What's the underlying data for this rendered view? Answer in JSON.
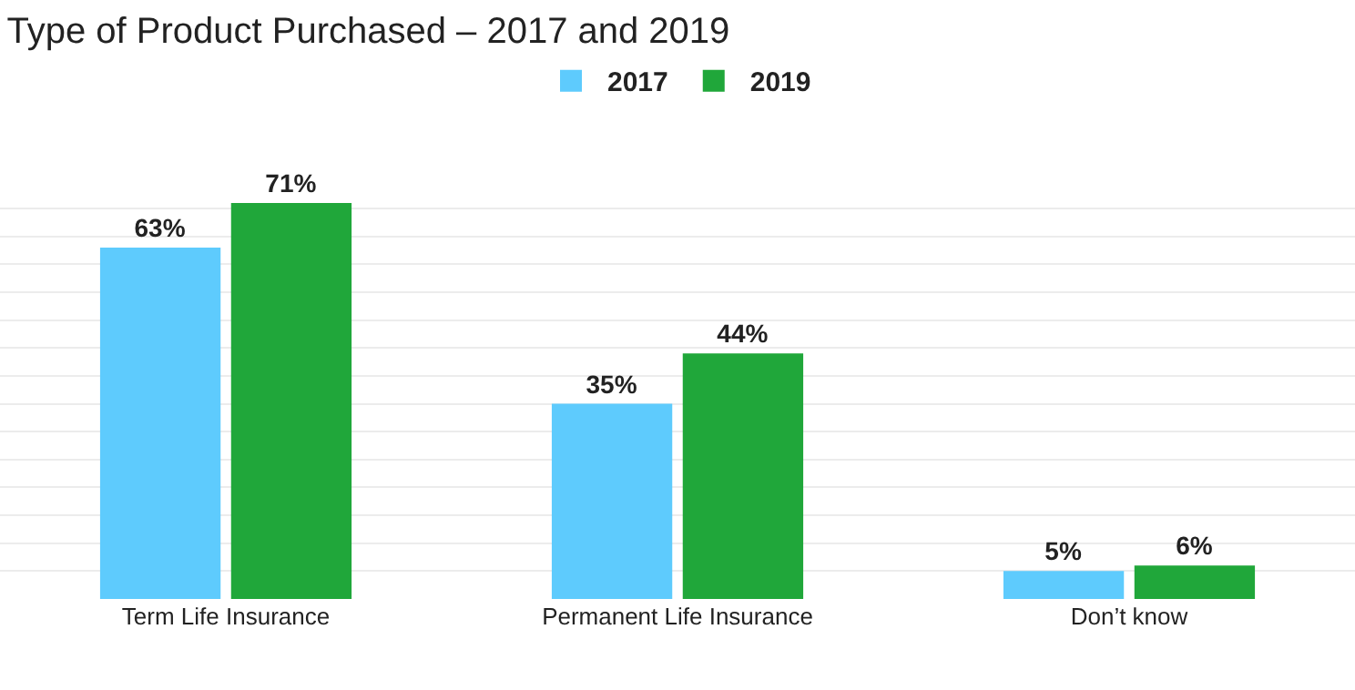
{
  "chart_data": {
    "type": "bar",
    "title": "Type of Product Purchased – 2017 and 2019",
    "categories": [
      "Term Life Insurance",
      "Permanent Life Insurance",
      "Don’t know"
    ],
    "series": [
      {
        "name": "2017",
        "color": "#5ecbfd",
        "values": [
          63,
          35,
          5
        ],
        "value_labels": [
          "63%",
          "35%",
          "5%"
        ]
      },
      {
        "name": "2019",
        "color": "#20a73a",
        "values": [
          71,
          44,
          6
        ],
        "value_labels": [
          "71%",
          "44%",
          "6%"
        ]
      }
    ],
    "tick_labels": "x",
    "grid": "y",
    "legend": "top"
  }
}
